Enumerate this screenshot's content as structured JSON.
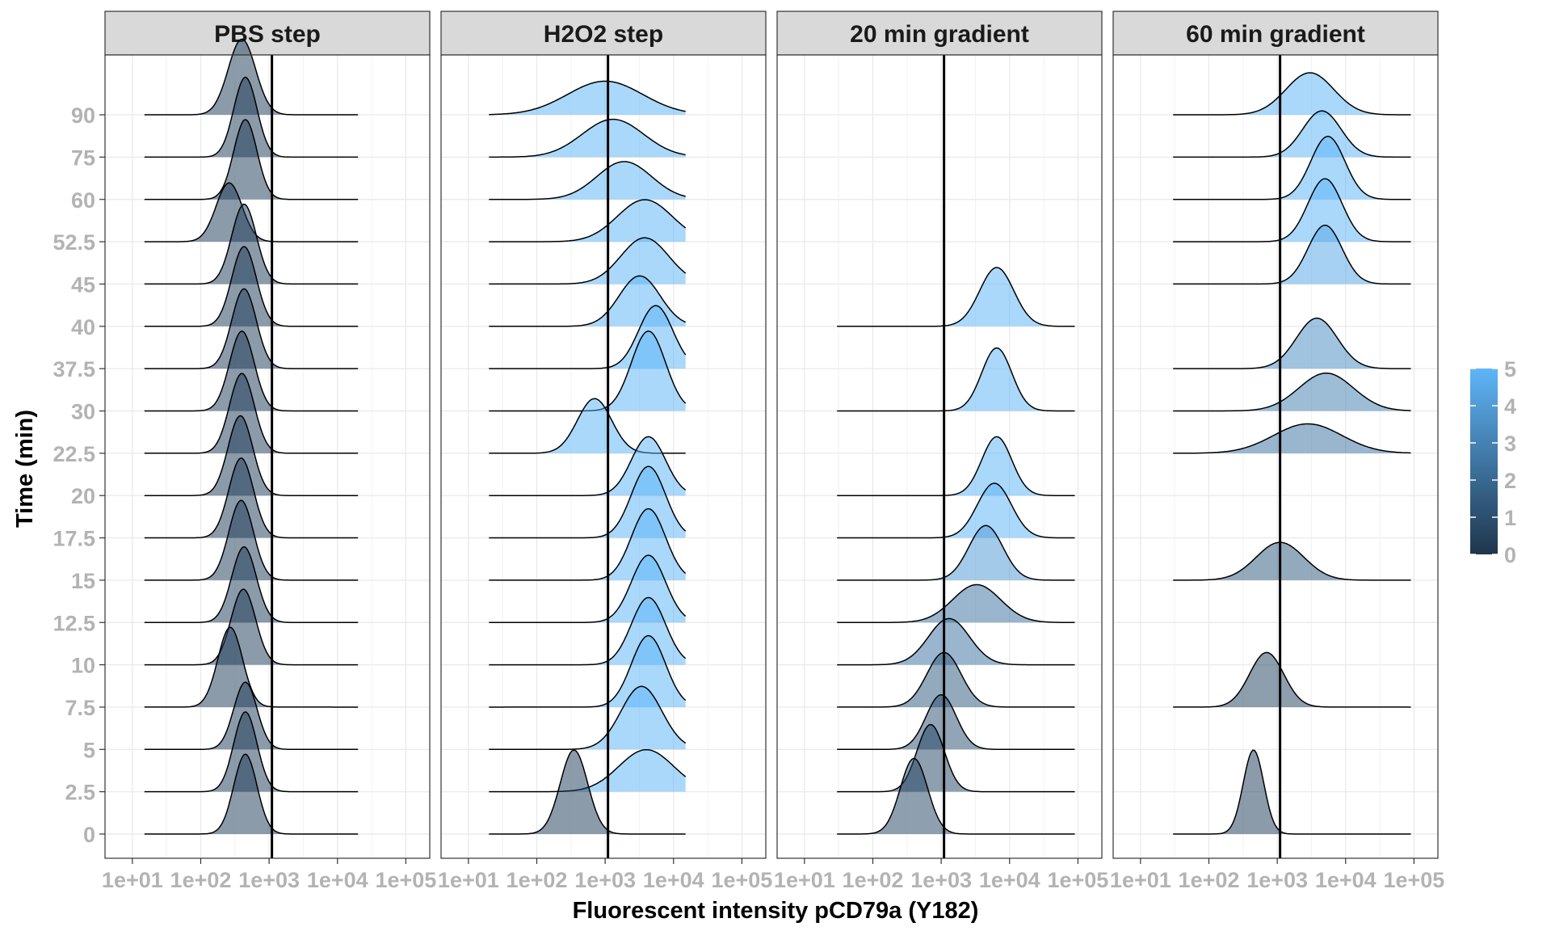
{
  "chart_data": {
    "type": "ridgeline",
    "xlabel": "Fluorescent intensity pCD79a (Y182)",
    "ylabel": "Time (min)",
    "x_scale": "log10",
    "x_ticks": [
      "1e+01",
      "1e+02",
      "1e+03",
      "1e+04",
      "1e+05"
    ],
    "x_tick_values": [
      10,
      100,
      1000,
      10000,
      100000
    ],
    "y_categories": [
      "0",
      "2.5",
      "5",
      "7.5",
      "10",
      "12.5",
      "15",
      "17.5",
      "20",
      "22.5",
      "30",
      "37.5",
      "40",
      "45",
      "52.5",
      "60",
      "75",
      "90"
    ],
    "grid": true,
    "fill_scale": {
      "min": 0,
      "max": 5,
      "low_color": "#132b43",
      "high_color": "#56b1f7",
      "ticks": [
        "0",
        "1",
        "2",
        "3",
        "4",
        "5"
      ],
      "legend_position": "right"
    },
    "reference_line_x": 1100,
    "panels": [
      {
        "title": "PBS step",
        "curve_x_range": [
          15,
          20000
        ],
        "ridges": [
          {
            "time": "0",
            "peak_x": 450,
            "peak_height": 1.9,
            "width_log10": 0.17,
            "fill": 0.5
          },
          {
            "time": "2.5",
            "peak_x": 450,
            "peak_height": 1.9,
            "width_log10": 0.17,
            "fill": 0.5
          },
          {
            "time": "5",
            "peak_x": 450,
            "peak_height": 1.6,
            "width_log10": 0.17,
            "fill": 0.5
          },
          {
            "time": "7.5",
            "peak_x": 270,
            "peak_height": 1.9,
            "width_log10": 0.18,
            "fill": 0.5
          },
          {
            "time": "10",
            "peak_x": 420,
            "peak_height": 1.8,
            "width_log10": 0.18,
            "fill": 0.5
          },
          {
            "time": "12.5",
            "peak_x": 430,
            "peak_height": 1.8,
            "width_log10": 0.18,
            "fill": 0.5
          },
          {
            "time": "15",
            "peak_x": 390,
            "peak_height": 1.9,
            "width_log10": 0.18,
            "fill": 0.5
          },
          {
            "time": "17.5",
            "peak_x": 390,
            "peak_height": 1.9,
            "width_log10": 0.18,
            "fill": 0.5
          },
          {
            "time": "20",
            "peak_x": 380,
            "peak_height": 1.9,
            "width_log10": 0.18,
            "fill": 0.5
          },
          {
            "time": "22.5",
            "peak_x": 400,
            "peak_height": 1.9,
            "width_log10": 0.18,
            "fill": 0.5
          },
          {
            "time": "30",
            "peak_x": 400,
            "peak_height": 1.9,
            "width_log10": 0.18,
            "fill": 0.5
          },
          {
            "time": "37.5",
            "peak_x": 430,
            "peak_height": 1.9,
            "width_log10": 0.18,
            "fill": 0.5
          },
          {
            "time": "40",
            "peak_x": 430,
            "peak_height": 1.9,
            "width_log10": 0.18,
            "fill": 0.5
          },
          {
            "time": "45",
            "peak_x": 430,
            "peak_height": 1.9,
            "width_log10": 0.18,
            "fill": 0.5
          },
          {
            "time": "52.5",
            "peak_x": 260,
            "peak_height": 1.4,
            "width_log10": 0.19,
            "fill": 0.5
          },
          {
            "time": "60",
            "peak_x": 450,
            "peak_height": 1.9,
            "width_log10": 0.17,
            "fill": 0.5
          },
          {
            "time": "75",
            "peak_x": 450,
            "peak_height": 1.9,
            "width_log10": 0.17,
            "fill": 0.5
          },
          {
            "time": "90",
            "peak_x": 400,
            "peak_height": 1.8,
            "width_log10": 0.2,
            "fill": 0.5
          }
        ]
      },
      {
        "title": "H2O2 step",
        "curve_x_range": [
          20,
          15000
        ],
        "ridges": [
          {
            "time": "0",
            "peak_x": 350,
            "peak_height": 2.0,
            "width_log10": 0.2,
            "fill": 0.5
          },
          {
            "time": "2.5",
            "peak_x": 4000,
            "peak_height": 1.0,
            "width_log10": 0.4,
            "fill": 5
          },
          {
            "time": "5",
            "peak_x": 3400,
            "peak_height": 1.5,
            "width_log10": 0.3,
            "fill": 5
          },
          {
            "time": "7.5",
            "peak_x": 4300,
            "peak_height": 1.7,
            "width_log10": 0.25,
            "fill": 5
          },
          {
            "time": "10",
            "peak_x": 4300,
            "peak_height": 1.6,
            "width_log10": 0.25,
            "fill": 5
          },
          {
            "time": "12.5",
            "peak_x": 4300,
            "peak_height": 1.6,
            "width_log10": 0.25,
            "fill": 5
          },
          {
            "time": "15",
            "peak_x": 4300,
            "peak_height": 1.7,
            "width_log10": 0.25,
            "fill": 5
          },
          {
            "time": "17.5",
            "peak_x": 4300,
            "peak_height": 1.7,
            "width_log10": 0.25,
            "fill": 5
          },
          {
            "time": "20",
            "peak_x": 4300,
            "peak_height": 1.4,
            "width_log10": 0.25,
            "fill": 5
          },
          {
            "time": "22.5",
            "peak_x": 700,
            "peak_height": 1.3,
            "width_log10": 0.25,
            "fill": 5
          },
          {
            "time": "30",
            "peak_x": 4300,
            "peak_height": 1.9,
            "width_log10": 0.25,
            "fill": 5
          },
          {
            "time": "37.5",
            "peak_x": 5500,
            "peak_height": 1.5,
            "width_log10": 0.25,
            "fill": 5
          },
          {
            "time": "40",
            "peak_x": 3200,
            "peak_height": 1.2,
            "width_log10": 0.3,
            "fill": 5
          },
          {
            "time": "45",
            "peak_x": 3800,
            "peak_height": 1.1,
            "width_log10": 0.35,
            "fill": 5
          },
          {
            "time": "52.5",
            "peak_x": 3800,
            "peak_height": 1.0,
            "width_log10": 0.4,
            "fill": 5
          },
          {
            "time": "60",
            "peak_x": 1900,
            "peak_height": 0.9,
            "width_log10": 0.4,
            "fill": 5
          },
          {
            "time": "75",
            "peak_x": 1300,
            "peak_height": 0.9,
            "width_log10": 0.45,
            "fill": 5
          },
          {
            "time": "90",
            "peak_x": 1000,
            "peak_height": 0.8,
            "width_log10": 0.55,
            "fill": 5
          }
        ]
      },
      {
        "title": "20 min gradient",
        "curve_x_range": [
          30,
          90000
        ],
        "ridges": [
          {
            "time": "0",
            "peak_x": 400,
            "peak_height": 1.8,
            "width_log10": 0.2,
            "fill": 0.8
          },
          {
            "time": "2.5",
            "peak_x": 700,
            "peak_height": 1.6,
            "width_log10": 0.2,
            "fill": 0.8
          },
          {
            "time": "5",
            "peak_x": 1000,
            "peak_height": 1.3,
            "width_log10": 0.22,
            "fill": 1.2
          },
          {
            "time": "7.5",
            "peak_x": 1100,
            "peak_height": 1.3,
            "width_log10": 0.25,
            "fill": 1.5
          },
          {
            "time": "10",
            "peak_x": 1300,
            "peak_height": 1.1,
            "width_log10": 0.3,
            "fill": 2.5
          },
          {
            "time": "12.5",
            "peak_x": 3300,
            "peak_height": 0.9,
            "width_log10": 0.35,
            "fill": 2.5
          },
          {
            "time": "15",
            "peak_x": 4500,
            "peak_height": 1.3,
            "width_log10": 0.25,
            "fill": 4
          },
          {
            "time": "17.5",
            "peak_x": 6000,
            "peak_height": 1.3,
            "width_log10": 0.25,
            "fill": 5
          },
          {
            "time": "20",
            "peak_x": 6500,
            "peak_height": 1.4,
            "width_log10": 0.22,
            "fill": 5
          },
          {
            "time": "30",
            "peak_x": 6500,
            "peak_height": 1.5,
            "width_log10": 0.22,
            "fill": 5
          },
          {
            "time": "40",
            "peak_x": 6500,
            "peak_height": 1.4,
            "width_log10": 0.25,
            "fill": 5
          }
        ]
      },
      {
        "title": "60 min gradient",
        "curve_x_range": [
          30,
          90000
        ],
        "ridges": [
          {
            "time": "0",
            "peak_x": 450,
            "peak_height": 2.0,
            "width_log10": 0.15,
            "fill": 0.5
          },
          {
            "time": "7.5",
            "peak_x": 700,
            "peak_height": 1.3,
            "width_log10": 0.25,
            "fill": 0.7
          },
          {
            "time": "15",
            "peak_x": 1100,
            "peak_height": 0.9,
            "width_log10": 0.35,
            "fill": 1.5
          },
          {
            "time": "22.5",
            "peak_x": 2800,
            "peak_height": 0.7,
            "width_log10": 0.5,
            "fill": 2.5
          },
          {
            "time": "30",
            "peak_x": 5200,
            "peak_height": 0.9,
            "width_log10": 0.4,
            "fill": 3
          },
          {
            "time": "37.5",
            "peak_x": 3800,
            "peak_height": 1.2,
            "width_log10": 0.3,
            "fill": 3.5
          },
          {
            "time": "45",
            "peak_x": 5000,
            "peak_height": 1.4,
            "width_log10": 0.25,
            "fill": 4.5
          },
          {
            "time": "52.5",
            "peak_x": 5000,
            "peak_height": 1.5,
            "width_log10": 0.25,
            "fill": 5
          },
          {
            "time": "60",
            "peak_x": 5500,
            "peak_height": 1.5,
            "width_log10": 0.25,
            "fill": 5
          },
          {
            "time": "75",
            "peak_x": 4500,
            "peak_height": 1.1,
            "width_log10": 0.28,
            "fill": 5
          },
          {
            "time": "90",
            "peak_x": 3000,
            "peak_height": 1.0,
            "width_log10": 0.35,
            "fill": 5
          }
        ]
      }
    ]
  }
}
